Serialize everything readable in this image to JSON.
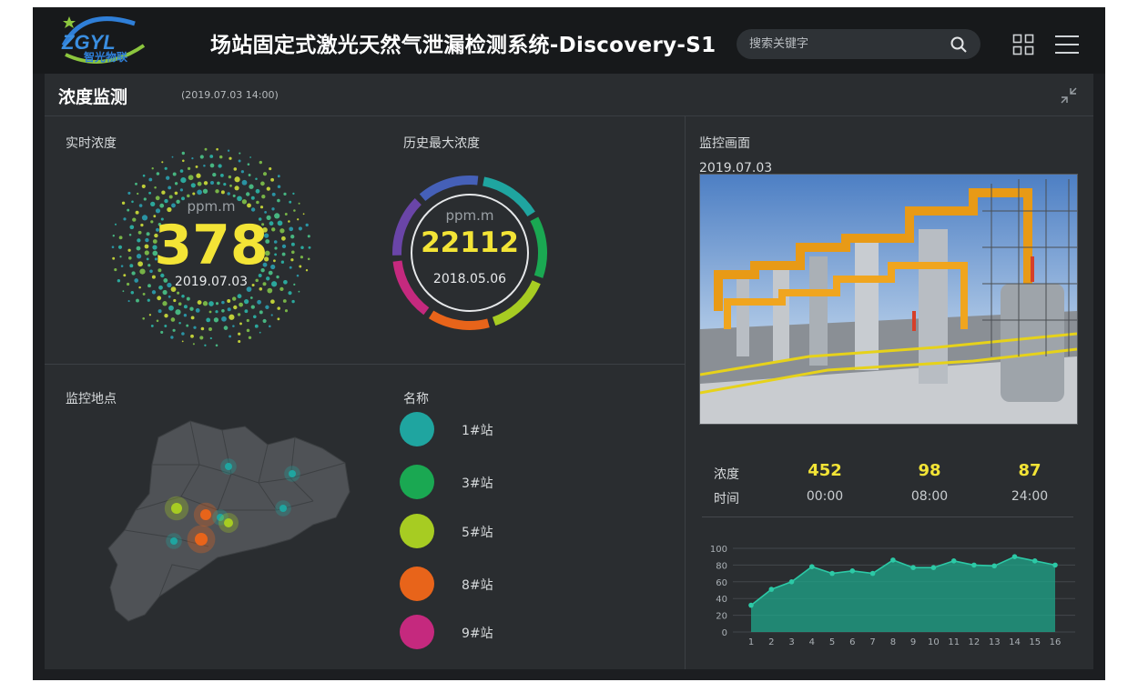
{
  "header": {
    "logo_text": "ZGYL 智光物联",
    "title": "场站固定式激光天然气泄漏检测系统-Discovery-S1",
    "search_placeholder": "搜索关键字"
  },
  "panel": {
    "title": "浓度监测",
    "datetime": "(2019.07.03  14:00)"
  },
  "realtime": {
    "label": "实时浓度",
    "unit": "ppm.m",
    "value": "378",
    "date": "2019.07.03"
  },
  "history_max": {
    "label": "历史最大浓度",
    "unit": "ppm.m",
    "value": "22112",
    "date": "2018.05.06",
    "ring_colors": [
      "#1fa5a0",
      "#1aa852",
      "#a7cc22",
      "#e8641a",
      "#c5297e",
      "#6a45a8",
      "#4560b8"
    ]
  },
  "locations": {
    "label": "监控地点",
    "name_header": "名称",
    "stations": [
      {
        "name": "1#站",
        "color": "#1fa5a0"
      },
      {
        "name": "3#站",
        "color": "#1aa852"
      },
      {
        "name": "5#站",
        "color": "#a7cc22"
      },
      {
        "name": "8#站",
        "color": "#e8641a"
      },
      {
        "name": "9#站",
        "color": "#c5297e"
      }
    ]
  },
  "monitor": {
    "label": "监控画面",
    "date": "2019.07.03"
  },
  "stats": {
    "concentration_label": "浓度",
    "time_label": "时间",
    "items": [
      {
        "value": "452",
        "time": "00:00"
      },
      {
        "value": "98",
        "time": "08:00"
      },
      {
        "value": "87",
        "time": "24:00"
      }
    ]
  },
  "chart_data": {
    "type": "area",
    "x": [
      1,
      2,
      3,
      4,
      5,
      6,
      7,
      8,
      9,
      10,
      11,
      12,
      13,
      14,
      15,
      16
    ],
    "values": [
      32,
      51,
      60,
      78,
      70,
      73,
      70,
      86,
      77,
      77,
      85,
      80,
      79,
      90,
      85,
      80
    ],
    "ylim": [
      0,
      100
    ],
    "yticks": [
      0,
      20,
      40,
      60,
      80,
      100
    ],
    "grid": true,
    "color": "#1fa589"
  }
}
